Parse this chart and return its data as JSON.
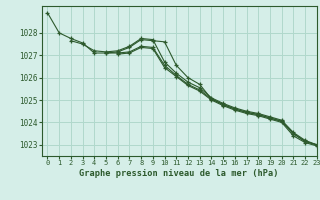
{
  "title": "Graphe pression niveau de la mer (hPa)",
  "bg_color": "#d5eee8",
  "grid_color": "#b0d8cc",
  "line_color": "#2d5a2d",
  "xlim": [
    -0.5,
    23
  ],
  "ylim": [
    1022.5,
    1029.2
  ],
  "yticks": [
    1023,
    1024,
    1025,
    1026,
    1027,
    1028
  ],
  "xticks": [
    0,
    1,
    2,
    3,
    4,
    5,
    6,
    7,
    8,
    9,
    10,
    11,
    12,
    13,
    14,
    15,
    16,
    17,
    18,
    19,
    20,
    21,
    22,
    23
  ],
  "series": [
    [
      1028.9,
      1028.0,
      1027.75,
      1027.55,
      1027.1,
      1027.1,
      1027.15,
      1027.35,
      1027.7,
      1027.65,
      1027.6,
      1026.55,
      1026.0,
      1025.7,
      1025.05,
      1024.8,
      1024.6,
      1024.45,
      1024.35,
      1024.2,
      1024.05,
      1023.5,
      1023.15,
      1023.0
    ],
    [
      null,
      null,
      1027.65,
      1027.5,
      1027.2,
      1027.15,
      1027.2,
      1027.4,
      1027.75,
      1027.7,
      1026.7,
      1026.2,
      1025.8,
      1025.55,
      1025.1,
      1024.85,
      1024.65,
      1024.5,
      1024.4,
      1024.25,
      1024.1,
      1023.55,
      1023.2,
      1023.0
    ],
    [
      null,
      null,
      null,
      null,
      null,
      1027.1,
      1027.1,
      1027.15,
      1027.4,
      1027.35,
      1026.55,
      1026.1,
      1025.7,
      1025.45,
      1025.05,
      1024.8,
      1024.6,
      1024.45,
      1024.35,
      1024.2,
      1024.05,
      1023.5,
      1023.15,
      1023.0
    ],
    [
      null,
      null,
      null,
      null,
      null,
      null,
      1027.05,
      1027.1,
      1027.35,
      1027.3,
      1026.45,
      1026.05,
      1025.65,
      1025.4,
      1025.0,
      1024.75,
      1024.55,
      1024.4,
      1024.3,
      1024.15,
      1024.0,
      1023.4,
      1023.1,
      1022.95
    ]
  ]
}
